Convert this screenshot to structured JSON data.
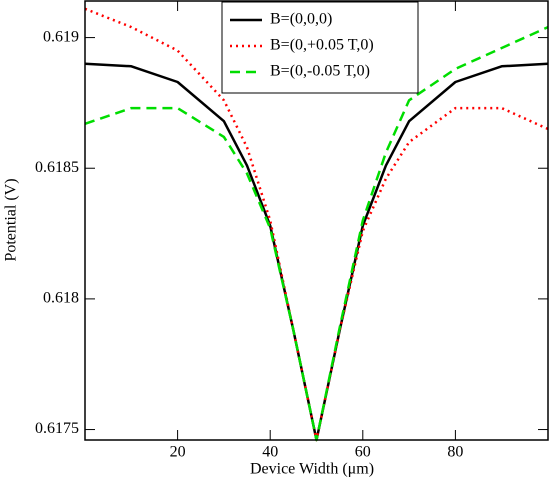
{
  "chart_data": {
    "type": "line",
    "xlabel": "Device Width (μm)",
    "ylabel": "Potential (V)",
    "x": [
      0,
      10,
      20,
      30,
      35,
      40,
      45,
      50,
      55,
      60,
      65,
      70,
      80,
      90,
      100
    ],
    "series": [
      {
        "name": "B=(0,0,0)",
        "color": "#000000",
        "style": "solid",
        "values": [
          0.6189,
          0.61889,
          0.61883,
          0.61868,
          0.61851,
          0.61828,
          0.61788,
          0.61746,
          0.61788,
          0.61828,
          0.61851,
          0.61868,
          0.61883,
          0.61889,
          0.6189
        ]
      },
      {
        "name": "B=(0,+0.05 T,0)",
        "color": "#ff0000",
        "style": "dotted",
        "values": [
          0.61911,
          0.61904,
          0.61895,
          0.61876,
          0.61858,
          0.6183,
          0.61788,
          0.61746,
          0.61788,
          0.61826,
          0.61846,
          0.6186,
          0.61873,
          0.61873,
          0.61865
        ]
      },
      {
        "name": "B=(0,-0.05 T,0)",
        "color": "#00dd00",
        "style": "dashed",
        "values": [
          0.61867,
          0.61873,
          0.61873,
          0.61862,
          0.61848,
          0.61827,
          0.61788,
          0.61746,
          0.61789,
          0.6183,
          0.61856,
          0.61876,
          0.61888,
          0.61896,
          0.61904
        ]
      }
    ],
    "xlim": [
      0,
      100
    ],
    "ylim": [
      0.61746,
      0.61914
    ],
    "xticks": [
      20,
      40,
      60,
      80
    ],
    "yticks": [
      0.6175,
      0.618,
      0.6185,
      0.619
    ],
    "legend": "top"
  }
}
